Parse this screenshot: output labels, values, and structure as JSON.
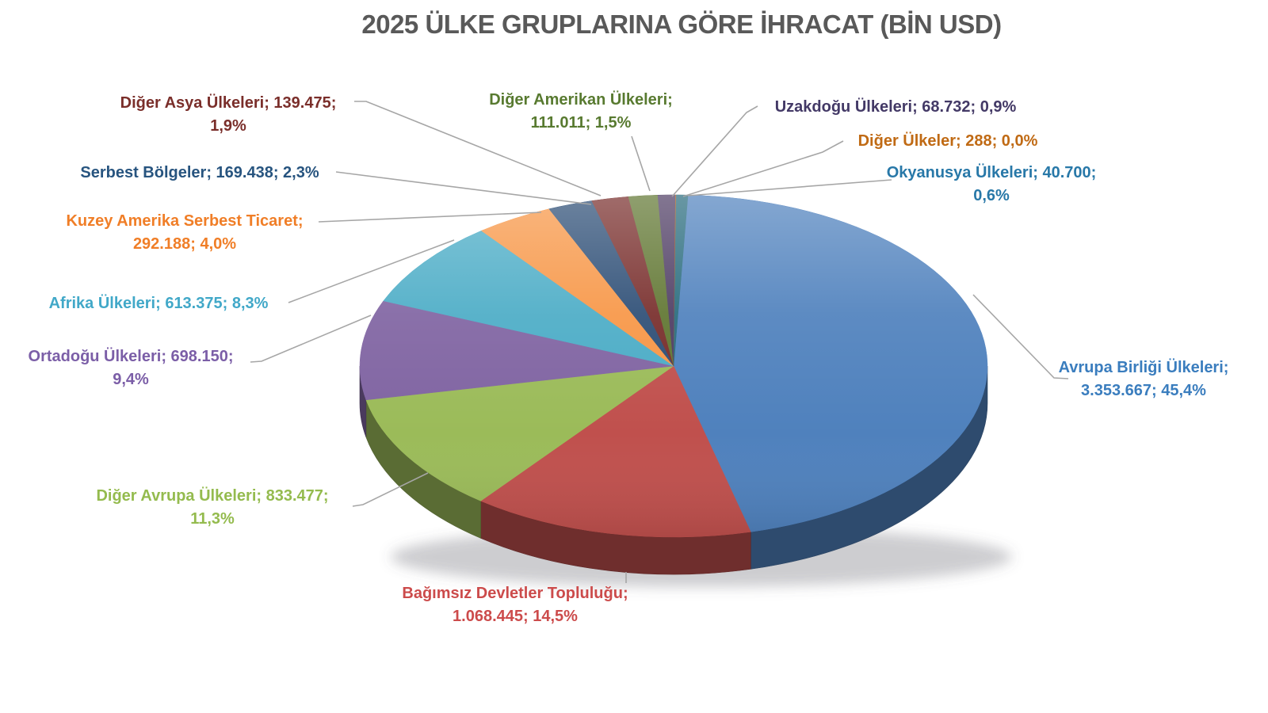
{
  "chart_data": {
    "type": "pie",
    "title": "2025 ÜLKE GRUPLARINA GÖRE İHRACAT (BİN USD)",
    "unit_note": "BİN USD",
    "style": "3d-pie",
    "legend_position": "none",
    "label_format": "name; value; percent",
    "leader_line_color": "#A6A6A6",
    "title_color": "#595959",
    "background_color": "#FFFFFF",
    "slices": [
      {
        "id": "avrupa-birligi",
        "name": "Avrupa Birliği Ülkeleri",
        "value": 3353667,
        "value_label": "3.353.667",
        "percent": 45.4,
        "percent_label": "45,4%",
        "color": "#4F81BD",
        "label_color": "#3A7DBE",
        "label_lines": [
          "Avrupa Birliği Ülkeleri;",
          "3.353.667; 45,4%"
        ]
      },
      {
        "id": "bagimsiz-devletler",
        "name": "Bağımsız Devletler Topluluğu",
        "value": 1068445,
        "value_label": "1.068.445",
        "percent": 14.5,
        "percent_label": "14,5%",
        "color": "#C0504D",
        "label_color": "#CC4B4B",
        "label_lines": [
          "Bağımsız Devletler Topluluğu;",
          "1.068.445; 14,5%"
        ]
      },
      {
        "id": "diger-avrupa",
        "name": "Diğer Avrupa Ülkeleri",
        "value": 833477,
        "value_label": "833.477",
        "percent": 11.3,
        "percent_label": "11,3%",
        "color": "#9BBB59",
        "label_color": "#94BB4E",
        "label_lines": [
          "Diğer Avrupa Ülkeleri; 833.477;",
          "11,3%"
        ]
      },
      {
        "id": "ortadogu",
        "name": "Ortadoğu Ülkeleri",
        "value": 698150,
        "value_label": "698.150",
        "percent": 9.4,
        "percent_label": "9,4%",
        "color": "#8064A2",
        "label_color": "#7B5EA7",
        "label_lines": [
          "Ortadoğu Ülkeleri; 698.150;",
          "9,4%"
        ]
      },
      {
        "id": "afrika",
        "name": "Afrika Ülkeleri",
        "value": 613375,
        "value_label": "613.375",
        "percent": 8.3,
        "percent_label": "8,3%",
        "color": "#4BACC6",
        "label_color": "#41A8C8",
        "label_lines": [
          "Afrika Ülkeleri; 613.375; 8,3%"
        ]
      },
      {
        "id": "kuzey-amerika-serbest-ticaret",
        "name": "Kuzey Amerika Serbest Ticaret",
        "value": 292188,
        "value_label": "292.188",
        "percent": 4.0,
        "percent_label": "4,0%",
        "color": "#F79646",
        "label_color": "#F07E27",
        "label_lines": [
          "Kuzey Amerika Serbest Ticaret;",
          "292.188; 4,0%"
        ]
      },
      {
        "id": "serbest-bolgeler",
        "name": "Serbest Bölgeler",
        "value": 169438,
        "value_label": "169.438",
        "percent": 2.3,
        "percent_label": "2,3%",
        "color": "#2C4D75",
        "label_color": "#27547F",
        "label_lines": [
          "Serbest Bölgeler; 169.438; 2,3%"
        ]
      },
      {
        "id": "diger-asya",
        "name": "Diğer Asya Ülkeleri",
        "value": 139475,
        "value_label": "139.475",
        "percent": 1.9,
        "percent_label": "1,9%",
        "color": "#772C2A",
        "label_color": "#7A2E2A",
        "label_lines": [
          "Diğer Asya Ülkeleri; 139.475;",
          "1,9%"
        ]
      },
      {
        "id": "diger-amerikan",
        "name": "Diğer Amerikan Ülkeleri",
        "value": 111011,
        "value_label": "111.011",
        "percent": 1.5,
        "percent_label": "1,5%",
        "color": "#5F7530",
        "label_color": "#587A30",
        "label_lines": [
          "Diğer Amerikan Ülkeleri;",
          "111.011; 1,5%"
        ]
      },
      {
        "id": "uzakdogu",
        "name": "Uzakdoğu Ülkeleri",
        "value": 68732,
        "value_label": "68.732",
        "percent": 0.9,
        "percent_label": "0,9%",
        "color": "#4D3B62",
        "label_color": "#433966",
        "label_lines": [
          "Uzakdoğu Ülkeleri; 68.732; 0,9%"
        ]
      },
      {
        "id": "diger-ulkeler",
        "name": "Diğer Ülkeler",
        "value": 288,
        "value_label": "288",
        "percent": 0.0,
        "percent_label": "0,0%",
        "color": "#B65708",
        "label_color": "#C06A14",
        "label_lines": [
          "Diğer Ülkeler; 288; 0,0%"
        ]
      },
      {
        "id": "okyanusya",
        "name": "Okyanusya Ülkeleri",
        "value": 40700,
        "value_label": "40.700",
        "percent": 0.6,
        "percent_label": "0,6%",
        "color": "#276A7C",
        "label_color": "#2878A8",
        "label_lines": [
          "Okyanusya Ülkeleri; 40.700;",
          "0,6%"
        ]
      }
    ]
  }
}
